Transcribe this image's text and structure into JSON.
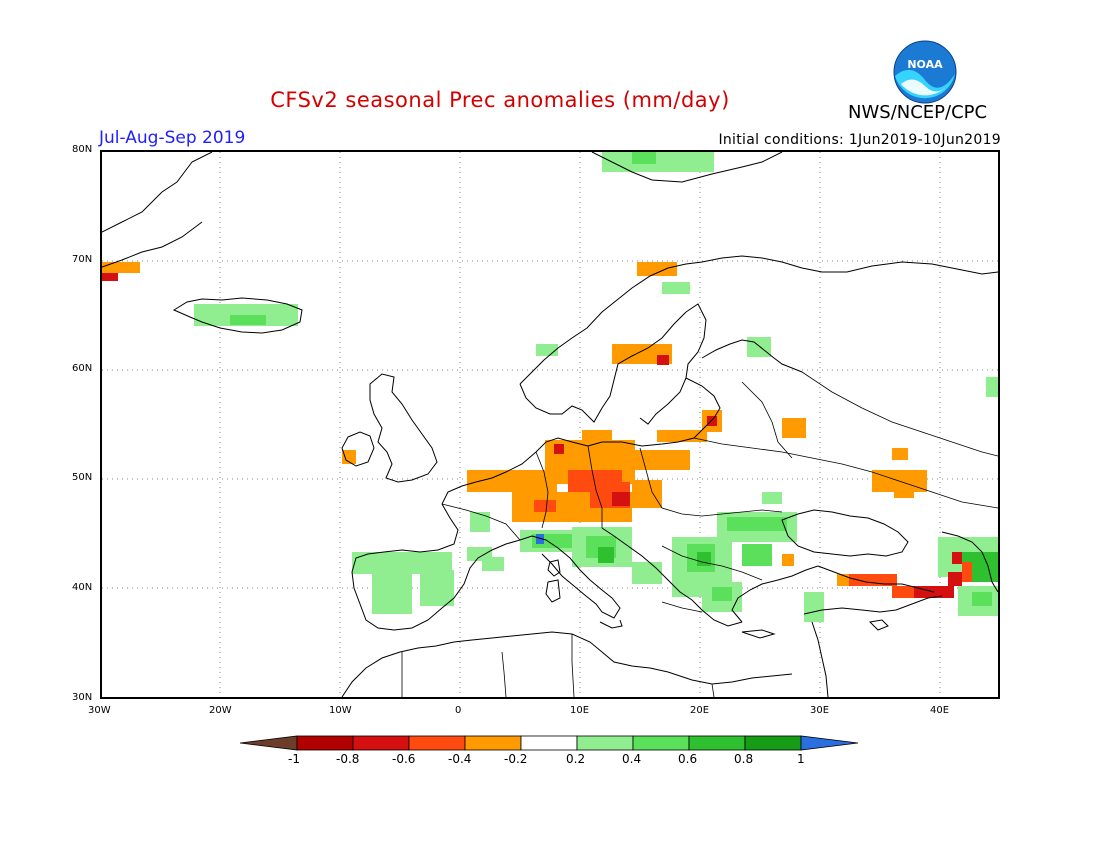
{
  "title": "CFSv2 seasonal Prec anomalies (mm/day)",
  "period": "Jul-Aug-Sep 2019",
  "initial_conditions": "Initial conditions: 1Jun2019-10Jun2019",
  "agency": "NWS/NCEP/CPC",
  "logo_text": "NOAA",
  "lat_labels": [
    "80N",
    "70N",
    "60N",
    "50N",
    "40N",
    "30N"
  ],
  "lon_labels": [
    "30W",
    "20W",
    "10W",
    "0",
    "10E",
    "20E",
    "30E",
    "40E"
  ],
  "colorbar": {
    "ticks": [
      "-1",
      "-0.8",
      "-0.6",
      "-0.4",
      "-0.2",
      "0.2",
      "0.4",
      "0.6",
      "0.8",
      "1"
    ],
    "colors": [
      "#6b3d2a",
      "#b00000",
      "#d41010",
      "#ff4a10",
      "#ff9a00",
      "#ffffff",
      "#90ee90",
      "#5ae05a",
      "#2ec02e",
      "#169c16",
      "#2a6fe0"
    ]
  }
}
